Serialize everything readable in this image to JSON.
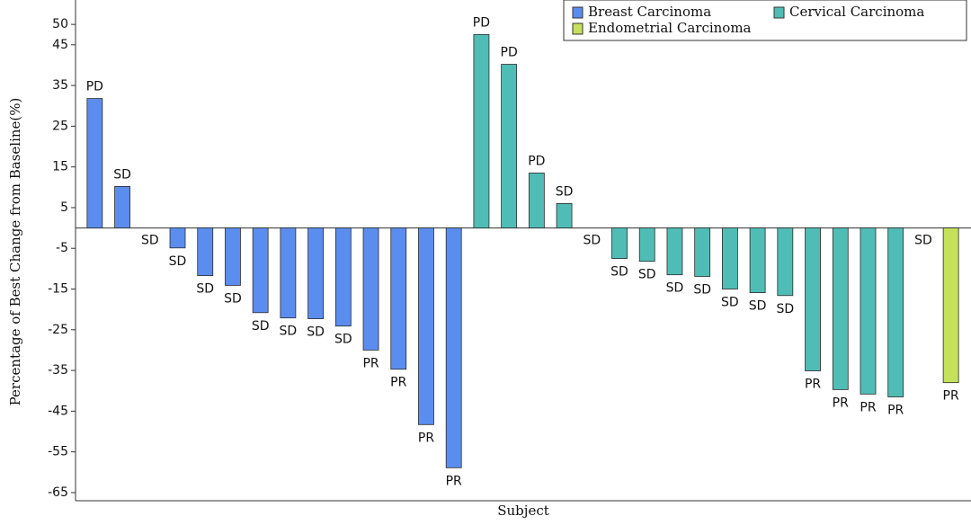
{
  "chart_data": {
    "type": "bar",
    "y_label": "Percentage of Best Change from Baseline(%)",
    "x_label": "Subject",
    "categories": [
      null,
      null,
      null,
      null,
      null,
      null,
      null,
      null,
      null,
      null,
      null,
      null,
      null,
      null,
      null,
      null,
      null,
      null,
      null,
      null,
      null,
      null,
      null,
      null,
      null,
      null,
      null,
      null,
      null,
      null,
      null,
      null
    ],
    "series": [
      {
        "name": "Breast Carcinoma",
        "color": "#5b8def",
        "values": [
          31.8,
          10.2,
          0,
          -4.9,
          -11.7,
          -14.1,
          -20.8,
          -22.1,
          -22.3,
          -24.1,
          -30,
          -34.7,
          -48.3,
          -58.9,
          null,
          null,
          null,
          null,
          null,
          null,
          null,
          null,
          null,
          null,
          null,
          null,
          null,
          null,
          null,
          null,
          null,
          null
        ]
      },
      {
        "name": "Cervical Carcinoma",
        "color": "#4fbdb5",
        "values": [
          null,
          null,
          null,
          null,
          null,
          null,
          null,
          null,
          null,
          null,
          null,
          null,
          null,
          null,
          47.5,
          40.2,
          13.5,
          6,
          0,
          -7.5,
          -8.2,
          -11.5,
          -11.9,
          -15,
          -15.9,
          -16.6,
          -35.1,
          -39.7,
          -40.8,
          -41.5,
          0,
          null
        ]
      },
      {
        "name": "Endometrial Carcinoma",
        "color": "#c5e05a",
        "values": [
          null,
          null,
          null,
          null,
          null,
          null,
          null,
          null,
          null,
          null,
          null,
          null,
          null,
          null,
          null,
          null,
          null,
          null,
          null,
          null,
          null,
          null,
          null,
          null,
          null,
          null,
          null,
          null,
          null,
          null,
          null,
          -38
        ]
      }
    ],
    "bar_labels": [
      "PD",
      "SD",
      "SD",
      "SD",
      "SD",
      "SD",
      "SD",
      "SD",
      "SD",
      "SD",
      "PR",
      "PR",
      "PR",
      "PR",
      "PD",
      "PD",
      "PD",
      "SD",
      "SD",
      "SD",
      "SD",
      "SD",
      "SD",
      "SD",
      "SD",
      "SD",
      "PR",
      "PR",
      "PR",
      "PR",
      "SD",
      "PR"
    ],
    "ylim": [
      -67,
      56
    ],
    "yticks": [
      50,
      45,
      35,
      25,
      15,
      5,
      -5,
      -15,
      -25,
      -35,
      -45,
      -55,
      -65
    ],
    "legend": "upper right"
  }
}
